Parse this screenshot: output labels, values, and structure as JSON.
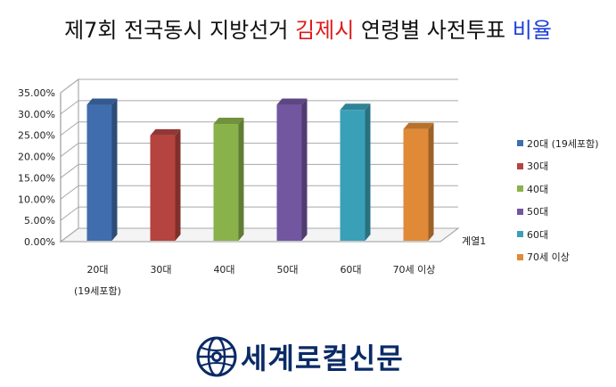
{
  "title": {
    "part1": "제7회 전국동시 지방선거 ",
    "part2": "김제시",
    "part3": " 연령별 사전투표 ",
    "part4": "비율"
  },
  "colors": {
    "title_highlight_red": "#e01a1a",
    "title_highlight_blue": "#1e3fd9",
    "logo": "#0a2a66"
  },
  "chart_data": {
    "type": "bar",
    "categories": [
      "20대\n(19세포함)",
      "30대",
      "40대",
      "50대",
      "60대",
      "70세 이상"
    ],
    "values": [
      33.0,
      25.8,
      28.5,
      33.0,
      31.8,
      27.3
    ],
    "colors": [
      "#3f6dad",
      "#b5433f",
      "#8ab24a",
      "#7256a0",
      "#3aa0b8",
      "#e08a37"
    ],
    "legend": [
      "20대 (19세포함)",
      "30대",
      "40대",
      "50대",
      "60대",
      "70세 이상"
    ],
    "depth_label": "계열1",
    "y_ticks": [
      "35.00%",
      "30.00%",
      "25.00%",
      "20.00%",
      "15.00%",
      "10.00%",
      "5.00%",
      "0.00%"
    ],
    "ylim": [
      0,
      35
    ],
    "grid": true,
    "legend_position": "right"
  },
  "logo": {
    "text": "세계로컬신문"
  }
}
